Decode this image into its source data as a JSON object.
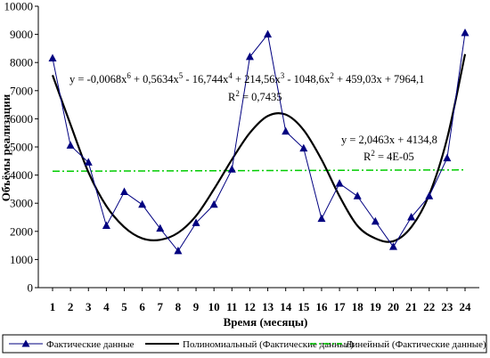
{
  "chart_data": {
    "type": "line",
    "title": "",
    "xlabel": "Время (месяцы)",
    "ylabel": "Объёмы реализации",
    "xlim": [
      1,
      24
    ],
    "ylim": [
      0,
      10000
    ],
    "categories": [
      "1",
      "2",
      "3",
      "4",
      "5",
      "6",
      "7",
      "8",
      "9",
      "10",
      "11",
      "12",
      "13",
      "14",
      "15",
      "16",
      "17",
      "18",
      "19",
      "20",
      "21",
      "22",
      "23",
      "24"
    ],
    "y_ticks": [
      "0",
      "1000",
      "2000",
      "3000",
      "4000",
      "5000",
      "6000",
      "7000",
      "8000",
      "9000",
      "10000"
    ],
    "grid": false,
    "legend_position": "bottom",
    "series": [
      {
        "name": "Фактические данные",
        "kind": "line-markers",
        "marker": "triangle",
        "color": "#000080",
        "values": [
          8150,
          5050,
          4450,
          2200,
          3400,
          2950,
          2100,
          1300,
          2300,
          2950,
          4200,
          8200,
          9000,
          5550,
          4950,
          2450,
          3700,
          3250,
          2350,
          1450,
          2500,
          3250,
          4600,
          9050
        ]
      },
      {
        "name": "Полиномиальный (Фактические данные)",
        "kind": "trend-line",
        "color": "#000000",
        "values": [
          7550,
          5800,
          4100,
          2900,
          2150,
          1750,
          1700,
          1950,
          2550,
          3500,
          4550,
          5500,
          6100,
          6150,
          5600,
          4550,
          3250,
          2200,
          1750,
          1650,
          2150,
          3300,
          5300,
          8300
        ]
      },
      {
        "name": "Линейный (Фактические данные)",
        "kind": "dash-dot-line",
        "color": "#00cc00",
        "values": [
          4137,
          4139,
          4141,
          4143,
          4145,
          4147,
          4149,
          4151,
          4153,
          4155,
          4157,
          4159,
          4161,
          4163,
          4165,
          4167,
          4170,
          4172,
          4174,
          4176,
          4178,
          4180,
          4182,
          4184
        ]
      }
    ],
    "annotations": {
      "poly_equation": {
        "parts": [
          "y = -0,0068x",
          "6",
          " + 0,5634x",
          "5",
          " - 16,744x",
          "4",
          " + 214,56x",
          "3",
          " - 1048,6x",
          "2",
          " + 459,03x + 7964,1"
        ]
      },
      "poly_r2": {
        "parts": [
          "R",
          "2",
          " = 0,7435"
        ]
      },
      "linear_equation": {
        "text": "y = 2,0463x + 4134,8"
      },
      "linear_r2": {
        "parts": [
          "R",
          "2",
          " = 4E-05"
        ]
      }
    }
  }
}
